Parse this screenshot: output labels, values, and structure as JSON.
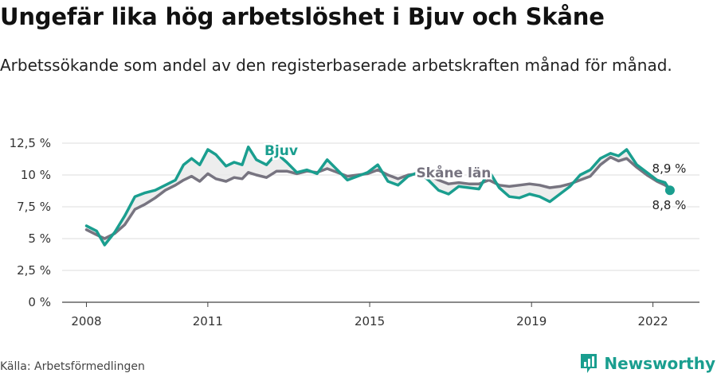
{
  "title": "Ungefär lika hög arbetslöshet i Bjuv och Skåne",
  "subtitle": "Arbetssökande som andel av den registerbaserade arbetskraften månad för månad.",
  "source": "Källa: Arbetsförmedlingen",
  "brand": "Newsworthy",
  "colors": {
    "bjuv": "#1a9e8f",
    "skane": "#777480",
    "grid": "#dddddd",
    "fill": "#e8e8e8"
  },
  "chart_data": {
    "type": "line",
    "title": "Ungefär lika hög arbetslöshet i Bjuv och Skåne",
    "ylabel": "",
    "xlabel": "",
    "ylim": [
      0,
      12.5
    ],
    "y_ticks": [
      0,
      2.5,
      5,
      7.5,
      10,
      12.5
    ],
    "y_tick_labels": [
      "0 %",
      "2,5 %",
      "5 %",
      "7,5 %",
      "10 %",
      "12,5 %"
    ],
    "x_ticks": [
      2008,
      2011,
      2015,
      2019,
      2022
    ],
    "x_tick_labels": [
      "2008",
      "2011",
      "2015",
      "2019",
      "2022"
    ],
    "grid": "horizontal",
    "series": [
      {
        "name": "Bjuv",
        "color": "#1a9e8f",
        "end_label": "8,8 %",
        "points": [
          [
            2008.0,
            6.0
          ],
          [
            2008.25,
            5.6
          ],
          [
            2008.45,
            4.5
          ],
          [
            2008.7,
            5.5
          ],
          [
            2008.95,
            6.8
          ],
          [
            2009.2,
            8.3
          ],
          [
            2009.45,
            8.6
          ],
          [
            2009.7,
            8.8
          ],
          [
            2009.95,
            9.2
          ],
          [
            2010.2,
            9.6
          ],
          [
            2010.4,
            10.8
          ],
          [
            2010.6,
            11.3
          ],
          [
            2010.8,
            10.8
          ],
          [
            2011.0,
            12.0
          ],
          [
            2011.2,
            11.6
          ],
          [
            2011.45,
            10.7
          ],
          [
            2011.65,
            11.0
          ],
          [
            2011.85,
            10.8
          ],
          [
            2012.0,
            12.2
          ],
          [
            2012.2,
            11.2
          ],
          [
            2012.45,
            10.8
          ],
          [
            2012.7,
            11.7
          ],
          [
            2012.95,
            11.0
          ],
          [
            2013.2,
            10.2
          ],
          [
            2013.45,
            10.4
          ],
          [
            2013.7,
            10.1
          ],
          [
            2013.95,
            11.2
          ],
          [
            2014.2,
            10.4
          ],
          [
            2014.45,
            9.6
          ],
          [
            2014.7,
            9.9
          ],
          [
            2014.95,
            10.2
          ],
          [
            2015.2,
            10.8
          ],
          [
            2015.45,
            9.5
          ],
          [
            2015.7,
            9.2
          ],
          [
            2015.95,
            9.9
          ],
          [
            2016.2,
            10.2
          ],
          [
            2016.45,
            9.6
          ],
          [
            2016.7,
            8.8
          ],
          [
            2016.95,
            8.5
          ],
          [
            2017.2,
            9.1
          ],
          [
            2017.45,
            9.0
          ],
          [
            2017.7,
            8.9
          ],
          [
            2017.95,
            10.3
          ],
          [
            2018.2,
            9.0
          ],
          [
            2018.45,
            8.3
          ],
          [
            2018.7,
            8.2
          ],
          [
            2018.95,
            8.5
          ],
          [
            2019.2,
            8.3
          ],
          [
            2019.45,
            7.9
          ],
          [
            2019.7,
            8.5
          ],
          [
            2019.95,
            9.1
          ],
          [
            2020.2,
            10.0
          ],
          [
            2020.45,
            10.4
          ],
          [
            2020.7,
            11.3
          ],
          [
            2020.95,
            11.7
          ],
          [
            2021.15,
            11.5
          ],
          [
            2021.35,
            12.0
          ],
          [
            2021.6,
            10.8
          ],
          [
            2021.85,
            10.2
          ],
          [
            2022.1,
            9.6
          ],
          [
            2022.3,
            9.4
          ],
          [
            2022.42,
            8.8
          ]
        ]
      },
      {
        "name": "Skåne län",
        "color": "#777480",
        "end_label": "8,9 %",
        "points": [
          [
            2008.0,
            5.7
          ],
          [
            2008.25,
            5.3
          ],
          [
            2008.45,
            5.0
          ],
          [
            2008.7,
            5.4
          ],
          [
            2008.95,
            6.1
          ],
          [
            2009.2,
            7.3
          ],
          [
            2009.45,
            7.7
          ],
          [
            2009.7,
            8.2
          ],
          [
            2009.95,
            8.8
          ],
          [
            2010.2,
            9.2
          ],
          [
            2010.4,
            9.6
          ],
          [
            2010.6,
            9.9
          ],
          [
            2010.8,
            9.5
          ],
          [
            2011.0,
            10.1
          ],
          [
            2011.2,
            9.7
          ],
          [
            2011.45,
            9.5
          ],
          [
            2011.65,
            9.8
          ],
          [
            2011.85,
            9.7
          ],
          [
            2012.0,
            10.2
          ],
          [
            2012.2,
            10.0
          ],
          [
            2012.45,
            9.8
          ],
          [
            2012.7,
            10.3
          ],
          [
            2012.95,
            10.3
          ],
          [
            2013.2,
            10.1
          ],
          [
            2013.45,
            10.3
          ],
          [
            2013.7,
            10.2
          ],
          [
            2013.95,
            10.5
          ],
          [
            2014.2,
            10.2
          ],
          [
            2014.45,
            9.9
          ],
          [
            2014.7,
            10.0
          ],
          [
            2014.95,
            10.1
          ],
          [
            2015.2,
            10.4
          ],
          [
            2015.45,
            10.0
          ],
          [
            2015.7,
            9.7
          ],
          [
            2015.95,
            10.0
          ],
          [
            2016.2,
            10.1
          ],
          [
            2016.45,
            10.0
          ],
          [
            2016.7,
            9.6
          ],
          [
            2016.95,
            9.3
          ],
          [
            2017.2,
            9.4
          ],
          [
            2017.45,
            9.3
          ],
          [
            2017.7,
            9.3
          ],
          [
            2017.95,
            9.6
          ],
          [
            2018.2,
            9.2
          ],
          [
            2018.45,
            9.1
          ],
          [
            2018.7,
            9.2
          ],
          [
            2018.95,
            9.3
          ],
          [
            2019.2,
            9.2
          ],
          [
            2019.45,
            9.0
          ],
          [
            2019.7,
            9.1
          ],
          [
            2019.95,
            9.3
          ],
          [
            2020.2,
            9.6
          ],
          [
            2020.45,
            9.9
          ],
          [
            2020.7,
            10.8
          ],
          [
            2020.95,
            11.4
          ],
          [
            2021.15,
            11.1
          ],
          [
            2021.35,
            11.3
          ],
          [
            2021.6,
            10.6
          ],
          [
            2021.85,
            10.0
          ],
          [
            2022.1,
            9.5
          ],
          [
            2022.3,
            9.2
          ],
          [
            2022.42,
            8.9
          ]
        ]
      }
    ]
  }
}
